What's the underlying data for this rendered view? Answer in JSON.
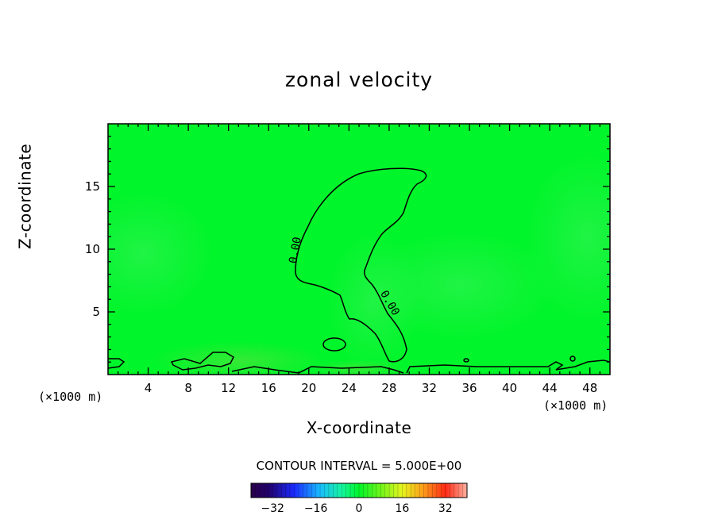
{
  "chart_data": {
    "type": "contour",
    "title": "zonal velocity",
    "xlabel": "X-coordinate",
    "ylabel": "Z-coordinate",
    "x_unit_left": "(×1000 m)",
    "x_unit_right": "(×1000 m)",
    "xlim": [
      0,
      50
    ],
    "ylim": [
      0,
      20
    ],
    "xticks": [
      4,
      8,
      12,
      16,
      20,
      24,
      28,
      32,
      36,
      40,
      44,
      48
    ],
    "yticks": [
      5,
      10,
      15
    ],
    "contour_levels_labeled": [
      "0.00",
      "0.00"
    ],
    "contour_interval_text": "CONTOUR INTERVAL = 5.000E+00",
    "colorbar": {
      "ticks": [
        "-32",
        "-16",
        "0",
        "16",
        "32"
      ],
      "range": [
        -40,
        40
      ]
    },
    "background_color": "#00ff2a",
    "colors": {
      "field_base": "#00f52a",
      "field_positive": "#4fd83a",
      "field_negative": "#2af06a"
    }
  }
}
